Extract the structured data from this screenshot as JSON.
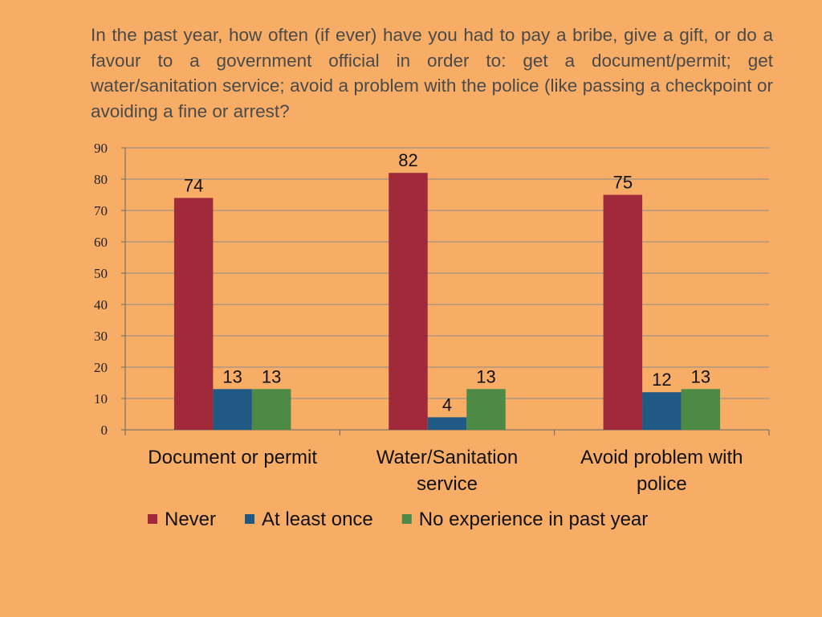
{
  "question": "In the past year, how often (if ever) have you had to pay a bribe, give a gift, or do a favour to a government official in order to: get a document/permit; get water/sanitation service; avoid a problem with the police (like passing a checkpoint or avoiding a fine or arrest?",
  "chart_data": {
    "type": "bar",
    "categories": [
      [
        "Document or permit"
      ],
      [
        "Water/Sanitation",
        "service"
      ],
      [
        "Avoid problem with",
        "police"
      ]
    ],
    "series": [
      {
        "name": "Never",
        "color": "#A0293A",
        "values": [
          74,
          82,
          75
        ]
      },
      {
        "name": "At least once",
        "color": "#1F5A85",
        "values": [
          13,
          4,
          12
        ]
      },
      {
        "name": "No experience in past year",
        "color": "#4C8A45",
        "values": [
          13,
          13,
          13
        ]
      }
    ],
    "ylim": [
      0,
      90
    ],
    "yticks": [
      0,
      10,
      20,
      30,
      40,
      50,
      60,
      70,
      80,
      90
    ],
    "grid": true,
    "legend": "bottom"
  }
}
